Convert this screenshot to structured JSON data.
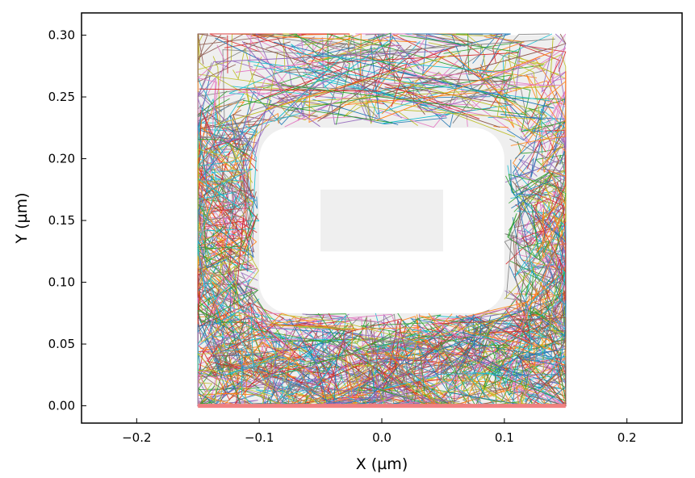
{
  "chart_data": {
    "type": "line",
    "title": "",
    "xlabel": "X (µm)",
    "ylabel": "Y (µm)",
    "xlim": [
      -0.245,
      0.245
    ],
    "ylim": [
      -0.014,
      0.318
    ],
    "xticks": [
      -0.2,
      -0.1,
      0.0,
      0.1,
      0.2
    ],
    "xtick_labels": [
      "−0.2",
      "−0.1",
      "0.0",
      "0.1",
      "0.2"
    ],
    "yticks": [
      0.0,
      0.05,
      0.1,
      0.15,
      0.2,
      0.25,
      0.3
    ],
    "ytick_labels": [
      "0.00",
      "0.05",
      "0.10",
      "0.15",
      "0.20",
      "0.25",
      "0.30"
    ],
    "grid": false,
    "legend": "none",
    "regions": [
      {
        "x": [
          -0.15,
          0.15
        ],
        "y": [
          0.0,
          0.3
        ],
        "color": "#efefef"
      },
      {
        "x": [
          -0.05,
          0.05
        ],
        "y": [
          0.125,
          0.175
        ],
        "color": "#efefef"
      }
    ],
    "cavity": {
      "x": [
        -0.1,
        0.1
      ],
      "y": [
        0.075,
        0.225
      ],
      "corner_radius": 0.025,
      "color": "#ffffff"
    },
    "baseline": {
      "x": [
        -0.15,
        0.15
      ],
      "y": 0.0,
      "color": "#f08080"
    },
    "trajectories_description_free": true,
    "series_colors": [
      "#1f77b4",
      "#ff7f0e",
      "#2ca02c",
      "#d62728",
      "#9467bd",
      "#8c564b",
      "#e377c2",
      "#7f7f7f",
      "#bcbd22",
      "#17becf"
    ]
  }
}
